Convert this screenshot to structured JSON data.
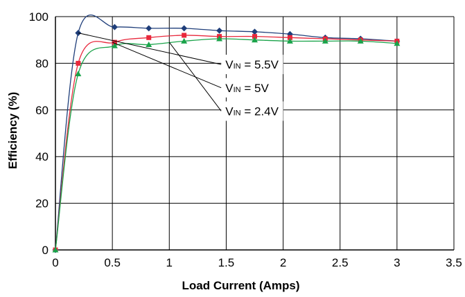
{
  "chart_data": {
    "type": "line",
    "title": "",
    "xlabel": "Load Current (Amps)",
    "ylabel": "Efficiency (%)",
    "xlim": [
      0,
      3.5
    ],
    "ylim": [
      0,
      100
    ],
    "xticks": [
      0,
      0.5,
      1,
      1.5,
      2,
      2.5,
      3,
      3.5
    ],
    "xtick_labels": [
      "0",
      "0.5",
      "1",
      "1.5",
      "2",
      "2.5",
      "3",
      "3.5"
    ],
    "yticks": [
      0,
      20,
      40,
      60,
      80,
      100
    ],
    "ytick_labels": [
      "0",
      "20",
      "40",
      "60",
      "80",
      "100"
    ],
    "grid": true,
    "series": [
      {
        "name": "VIN = 5.5V",
        "label_main": "V",
        "label_sub": "IN",
        "label_rest": " = 5.5V",
        "color": "#1f3e7a",
        "marker": "diamond",
        "x": [
          0,
          0.2,
          0.52,
          0.82,
          1.13,
          1.44,
          1.75,
          2.06,
          2.37,
          2.68,
          3.0
        ],
        "y": [
          0,
          93,
          95.5,
          95,
          95,
          94,
          93.5,
          92.5,
          91,
          90.5,
          89.5
        ]
      },
      {
        "name": "VIN = 5V",
        "label_main": "V",
        "label_sub": "IN",
        "label_rest": " = 5V",
        "color": "#e8283c",
        "marker": "square",
        "x": [
          0,
          0.2,
          0.52,
          0.82,
          1.13,
          1.44,
          1.75,
          2.06,
          2.37,
          2.68,
          3.0
        ],
        "y": [
          0,
          80,
          89,
          91,
          92,
          91.5,
          91.5,
          91,
          90.5,
          90,
          89.5
        ]
      },
      {
        "name": "VIN = 2.4V",
        "label_main": "V",
        "label_sub": "IN",
        "label_rest": " = 2.4V",
        "color": "#1aa34a",
        "marker": "triangle",
        "x": [
          0,
          0.2,
          0.52,
          0.82,
          1.13,
          1.44,
          1.75,
          2.06,
          2.37,
          2.68,
          3.0
        ],
        "y": [
          0,
          75.5,
          87.5,
          88,
          89.5,
          90.5,
          90,
          89.5,
          89.5,
          89.5,
          88.5
        ]
      }
    ],
    "annotations": [
      {
        "series": 0,
        "text_x": 1.42,
        "text_y": 79.5,
        "point_x": 0.2,
        "point_y": 93
      },
      {
        "series": 1,
        "text_x": 1.42,
        "text_y": 69.5,
        "point_x": 0.5,
        "point_y": 89
      },
      {
        "series": 2,
        "text_x": 1.42,
        "text_y": 59.5,
        "point_x": 1.0,
        "point_y": 89
      }
    ]
  }
}
